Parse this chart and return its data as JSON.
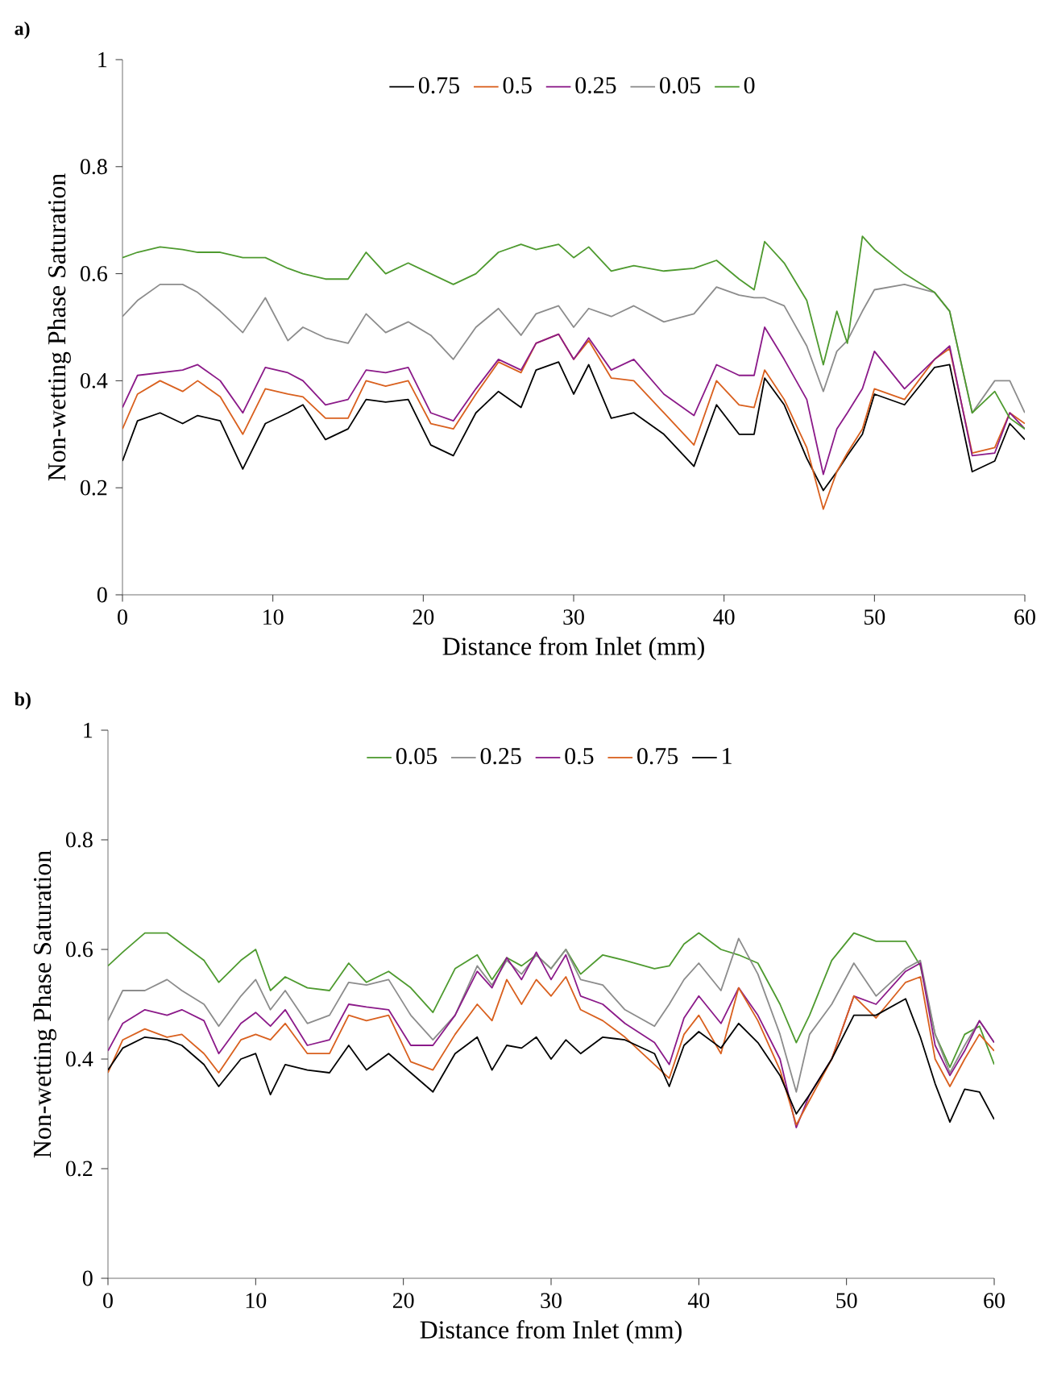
{
  "chart_data": [
    {
      "type": "line",
      "title": "a)",
      "xlabel": "Distance from Inlet (mm)",
      "ylabel": "Non-wetting Phase Saturation",
      "xlim": [
        0,
        60
      ],
      "ylim": [
        0,
        1
      ],
      "xticks": [
        0,
        10,
        20,
        30,
        40,
        50,
        60
      ],
      "yticks": [
        0,
        {
          "value": 0.2,
          "label": "0.2"
        },
        {
          "value": 0.4,
          "label": "0.4"
        },
        {
          "value": 0.6,
          "label": "0.6"
        },
        {
          "value": 0.8,
          "label": "0.8"
        },
        1
      ],
      "legend": "top",
      "x": [
        0,
        1,
        2.5,
        4,
        5,
        6.5,
        8,
        9.5,
        11,
        12,
        13.5,
        15,
        16.2,
        17.5,
        19,
        20.5,
        22,
        23.5,
        25,
        26.5,
        27.5,
        29,
        30,
        31,
        32.5,
        34,
        36,
        38,
        39.5,
        41,
        42,
        42.7,
        44,
        45.5,
        46.6,
        47.5,
        48.2,
        49.2,
        50,
        52,
        54,
        55,
        56.5,
        58,
        59,
        60
      ],
      "series": [
        {
          "name": "0.75",
          "color": "#000000",
          "values": [
            0.25,
            0.325,
            0.34,
            0.32,
            0.335,
            0.325,
            0.235,
            0.32,
            0.34,
            0.355,
            0.29,
            0.31,
            0.365,
            0.36,
            0.365,
            0.28,
            0.26,
            0.34,
            0.38,
            0.35,
            0.42,
            0.435,
            0.375,
            0.43,
            0.33,
            0.34,
            0.3,
            0.24,
            0.355,
            0.3,
            0.3,
            0.405,
            0.355,
            0.255,
            0.195,
            0.23,
            0.26,
            0.3,
            0.375,
            0.355,
            0.425,
            0.43,
            0.23,
            0.25,
            0.32,
            0.29
          ]
        },
        {
          "name": "0.5",
          "color": "#d9601e",
          "values": [
            0.31,
            0.375,
            0.4,
            0.38,
            0.4,
            0.37,
            0.3,
            0.385,
            0.375,
            0.37,
            0.33,
            0.33,
            0.4,
            0.39,
            0.4,
            0.32,
            0.31,
            0.375,
            0.435,
            0.415,
            0.47,
            0.487,
            0.44,
            0.475,
            0.405,
            0.4,
            0.34,
            0.28,
            0.4,
            0.355,
            0.35,
            0.42,
            0.365,
            0.275,
            0.16,
            0.23,
            0.265,
            0.31,
            0.385,
            0.365,
            0.44,
            0.46,
            0.265,
            0.275,
            0.34,
            0.32
          ]
        },
        {
          "name": "0.25",
          "color": "#8b1a89",
          "values": [
            0.35,
            0.41,
            0.415,
            0.42,
            0.43,
            0.4,
            0.34,
            0.425,
            0.415,
            0.4,
            0.355,
            0.365,
            0.42,
            0.415,
            0.425,
            0.34,
            0.325,
            0.385,
            0.44,
            0.42,
            0.47,
            0.487,
            0.44,
            0.48,
            0.42,
            0.44,
            0.375,
            0.335,
            0.43,
            0.41,
            0.41,
            0.5,
            0.44,
            0.365,
            0.225,
            0.31,
            0.34,
            0.385,
            0.455,
            0.385,
            0.44,
            0.465,
            0.26,
            0.265,
            0.34,
            0.31
          ]
        },
        {
          "name": "0.05",
          "color": "#8c8c8c",
          "values": [
            0.52,
            0.55,
            0.58,
            0.58,
            0.565,
            0.53,
            0.49,
            0.555,
            0.475,
            0.5,
            0.48,
            0.47,
            0.525,
            0.49,
            0.51,
            0.485,
            0.44,
            0.5,
            0.535,
            0.485,
            0.525,
            0.54,
            0.5,
            0.535,
            0.52,
            0.54,
            0.51,
            0.525,
            0.575,
            0.56,
            0.555,
            0.555,
            0.54,
            0.465,
            0.38,
            0.455,
            0.475,
            0.53,
            0.57,
            0.58,
            0.565,
            0.53,
            0.34,
            0.4,
            0.4,
            0.34
          ]
        },
        {
          "name": "0",
          "color": "#4e9a2f",
          "values": [
            0.63,
            0.64,
            0.65,
            0.645,
            0.64,
            0.64,
            0.63,
            0.63,
            0.61,
            0.6,
            0.59,
            0.59,
            0.64,
            0.6,
            0.62,
            0.6,
            0.58,
            0.6,
            0.64,
            0.655,
            0.645,
            0.655,
            0.63,
            0.65,
            0.605,
            0.615,
            0.605,
            0.61,
            0.625,
            0.59,
            0.57,
            0.66,
            0.62,
            0.55,
            0.43,
            0.53,
            0.47,
            0.67,
            0.645,
            0.6,
            0.565,
            0.53,
            0.34,
            0.38,
            0.33,
            0.31
          ]
        }
      ]
    },
    {
      "type": "line",
      "title": "b)",
      "xlabel": "Distance from Inlet (mm)",
      "ylabel": "Non-wetting Phase Saturation",
      "xlim": [
        0,
        60
      ],
      "ylim": [
        0,
        1
      ],
      "xticks": [
        0,
        10,
        20,
        30,
        40,
        50,
        60
      ],
      "yticks": [
        0,
        {
          "value": 0.2,
          "label": "0.2"
        },
        {
          "value": 0.4,
          "label": "0.4"
        },
        {
          "value": 0.6,
          "label": "0.6"
        },
        {
          "value": 0.8,
          "label": "0.8"
        },
        1
      ],
      "legend": "top",
      "x": [
        0,
        1,
        2.5,
        4,
        5,
        6.5,
        7.5,
        9,
        10,
        11,
        12,
        13.5,
        15,
        16.3,
        17.5,
        19,
        20.5,
        22,
        23.5,
        25,
        26,
        27,
        28,
        29,
        30,
        31,
        32,
        33.5,
        35,
        37,
        38,
        39,
        40,
        41.5,
        42.7,
        44,
        45.5,
        46.6,
        47.5,
        49,
        50.5,
        52,
        54,
        55,
        56,
        57,
        58,
        59,
        60
      ],
      "series": [
        {
          "name": "0.05",
          "color": "#4e9a2f",
          "values": [
            0.57,
            0.595,
            0.63,
            0.63,
            0.61,
            0.58,
            0.54,
            0.58,
            0.6,
            0.525,
            0.55,
            0.53,
            0.525,
            0.575,
            0.54,
            0.56,
            0.53,
            0.485,
            0.565,
            0.59,
            0.545,
            0.585,
            0.57,
            0.59,
            0.565,
            0.6,
            0.555,
            0.59,
            0.58,
            0.565,
            0.57,
            0.61,
            0.63,
            0.6,
            0.59,
            0.575,
            0.5,
            0.43,
            0.48,
            0.58,
            0.63,
            0.615,
            0.615,
            0.57,
            0.445,
            0.385,
            0.445,
            0.46,
            0.39
          ]
        },
        {
          "name": "0.25",
          "color": "#8c8c8c",
          "values": [
            0.47,
            0.525,
            0.525,
            0.545,
            0.525,
            0.5,
            0.46,
            0.515,
            0.545,
            0.49,
            0.525,
            0.465,
            0.48,
            0.54,
            0.535,
            0.545,
            0.48,
            0.435,
            0.48,
            0.57,
            0.535,
            0.58,
            0.555,
            0.59,
            0.565,
            0.6,
            0.545,
            0.535,
            0.49,
            0.46,
            0.5,
            0.545,
            0.575,
            0.525,
            0.62,
            0.555,
            0.445,
            0.34,
            0.445,
            0.5,
            0.575,
            0.515,
            0.565,
            0.58,
            0.445,
            0.375,
            0.425,
            0.47,
            0.43
          ]
        },
        {
          "name": "0.5",
          "color": "#8b1a89",
          "values": [
            0.415,
            0.465,
            0.49,
            0.48,
            0.49,
            0.47,
            0.41,
            0.465,
            0.485,
            0.46,
            0.49,
            0.425,
            0.435,
            0.5,
            0.495,
            0.49,
            0.425,
            0.425,
            0.48,
            0.56,
            0.53,
            0.585,
            0.545,
            0.595,
            0.545,
            0.59,
            0.515,
            0.5,
            0.465,
            0.43,
            0.39,
            0.475,
            0.515,
            0.465,
            0.53,
            0.48,
            0.4,
            0.275,
            0.335,
            0.4,
            0.515,
            0.5,
            0.56,
            0.575,
            0.425,
            0.37,
            0.415,
            0.47,
            0.43
          ]
        },
        {
          "name": "0.75",
          "color": "#d9601e",
          "values": [
            0.375,
            0.435,
            0.455,
            0.44,
            0.445,
            0.41,
            0.375,
            0.435,
            0.445,
            0.435,
            0.465,
            0.41,
            0.41,
            0.48,
            0.47,
            0.48,
            0.395,
            0.38,
            0.445,
            0.5,
            0.47,
            0.545,
            0.5,
            0.545,
            0.515,
            0.55,
            0.49,
            0.47,
            0.44,
            0.39,
            0.365,
            0.445,
            0.48,
            0.41,
            0.53,
            0.47,
            0.38,
            0.28,
            0.325,
            0.4,
            0.515,
            0.475,
            0.54,
            0.55,
            0.4,
            0.35,
            0.4,
            0.445,
            0.415
          ]
        },
        {
          "name": "1",
          "color": "#000000",
          "values": [
            0.38,
            0.42,
            0.44,
            0.435,
            0.425,
            0.39,
            0.35,
            0.4,
            0.41,
            0.335,
            0.39,
            0.38,
            0.375,
            0.425,
            0.38,
            0.41,
            0.375,
            0.34,
            0.41,
            0.44,
            0.38,
            0.425,
            0.42,
            0.44,
            0.4,
            0.435,
            0.41,
            0.44,
            0.435,
            0.41,
            0.35,
            0.425,
            0.45,
            0.42,
            0.465,
            0.43,
            0.37,
            0.3,
            0.335,
            0.4,
            0.48,
            0.48,
            0.51,
            0.44,
            0.355,
            0.285,
            0.345,
            0.34,
            0.29
          ]
        }
      ]
    }
  ]
}
